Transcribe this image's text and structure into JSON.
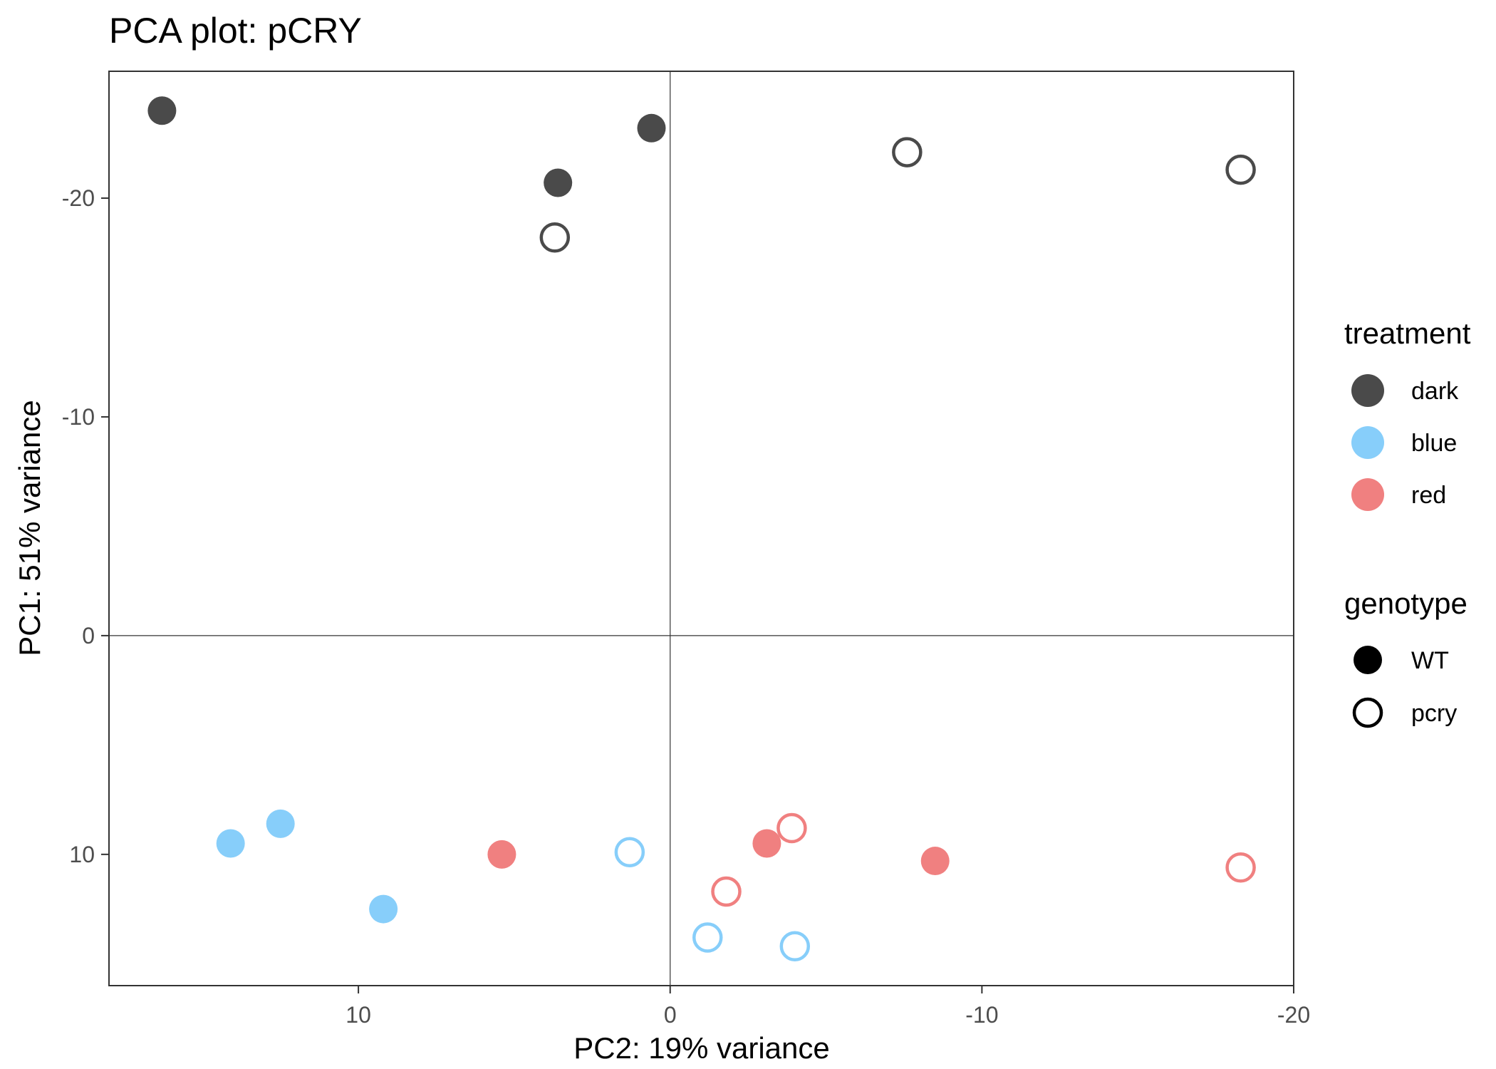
{
  "chart_data": {
    "type": "scatter",
    "title": "PCA plot: pCRY",
    "xlabel": "PC2: 19% variance",
    "ylabel": "PC1: 51% variance",
    "x_reversed": true,
    "y_reversed": true,
    "xlim": [
      18,
      -20
    ],
    "ylim": [
      -25.8,
      16.0
    ],
    "x_ticks": [
      10,
      0,
      -10,
      -20
    ],
    "y_ticks": [
      -20,
      -10,
      0,
      10
    ],
    "reference_lines": {
      "x": 0,
      "y": 0
    },
    "grid": false,
    "legend_position": "right",
    "colors": {
      "dark": "#4a4a4a",
      "blue": "#87cefa",
      "red": "#f08080"
    },
    "legend": {
      "treatment": {
        "title": "treatment",
        "items": [
          "dark",
          "blue",
          "red"
        ]
      },
      "genotype": {
        "title": "genotype",
        "items": [
          "WT",
          "pcry"
        ]
      }
    },
    "points": [
      {
        "x": 16.3,
        "y": -24.0,
        "treatment": "dark",
        "genotype": "WT"
      },
      {
        "x": 3.6,
        "y": -20.7,
        "treatment": "dark",
        "genotype": "WT"
      },
      {
        "x": 0.6,
        "y": -23.2,
        "treatment": "dark",
        "genotype": "WT"
      },
      {
        "x": 3.7,
        "y": -18.2,
        "treatment": "dark",
        "genotype": "pcry"
      },
      {
        "x": -7.6,
        "y": -22.1,
        "treatment": "dark",
        "genotype": "pcry"
      },
      {
        "x": -18.3,
        "y": -21.3,
        "treatment": "dark",
        "genotype": "pcry"
      },
      {
        "x": 14.1,
        "y": 9.5,
        "treatment": "blue",
        "genotype": "WT"
      },
      {
        "x": 12.5,
        "y": 8.6,
        "treatment": "blue",
        "genotype": "WT"
      },
      {
        "x": 9.2,
        "y": 12.5,
        "treatment": "blue",
        "genotype": "WT"
      },
      {
        "x": 1.3,
        "y": 9.9,
        "treatment": "blue",
        "genotype": "pcry"
      },
      {
        "x": -1.2,
        "y": 13.8,
        "treatment": "blue",
        "genotype": "pcry"
      },
      {
        "x": -4.0,
        "y": 14.2,
        "treatment": "blue",
        "genotype": "pcry"
      },
      {
        "x": 5.4,
        "y": 10.0,
        "treatment": "red",
        "genotype": "WT"
      },
      {
        "x": -3.1,
        "y": 9.5,
        "treatment": "red",
        "genotype": "WT"
      },
      {
        "x": -8.5,
        "y": 10.3,
        "treatment": "red",
        "genotype": "WT"
      },
      {
        "x": -3.9,
        "y": 8.8,
        "treatment": "red",
        "genotype": "pcry"
      },
      {
        "x": -1.8,
        "y": 11.7,
        "treatment": "red",
        "genotype": "pcry"
      },
      {
        "x": -18.3,
        "y": 10.6,
        "treatment": "red",
        "genotype": "pcry"
      }
    ]
  }
}
